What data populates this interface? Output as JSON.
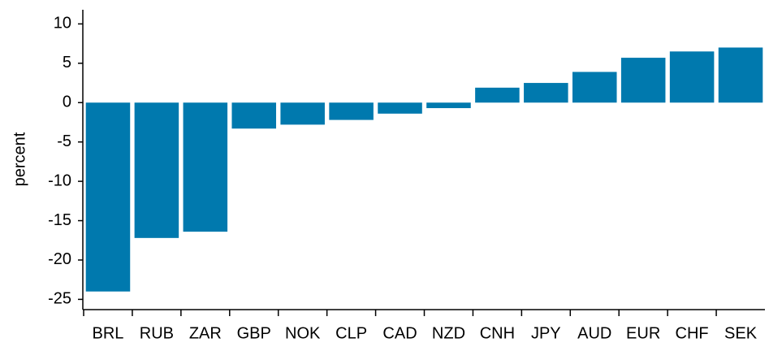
{
  "chart_data": {
    "type": "bar",
    "y_label": "percent",
    "categories": [
      "BRL",
      "RUB",
      "ZAR",
      "GBP",
      "NOK",
      "CLP",
      "CAD",
      "NZD",
      "CNH",
      "JPY",
      "AUD",
      "EUR",
      "CHF",
      "SEK"
    ],
    "values": [
      -24.0,
      -17.2,
      -16.4,
      -3.3,
      -2.8,
      -2.2,
      -1.4,
      -0.7,
      1.9,
      2.5,
      3.9,
      5.7,
      6.5,
      7.0
    ],
    "color": "#0079ae",
    "ylim": [
      -26.2,
      11.8
    ],
    "yticks": [
      -25,
      -20,
      -15,
      -10,
      -5,
      0,
      5,
      10
    ],
    "grid": false
  }
}
